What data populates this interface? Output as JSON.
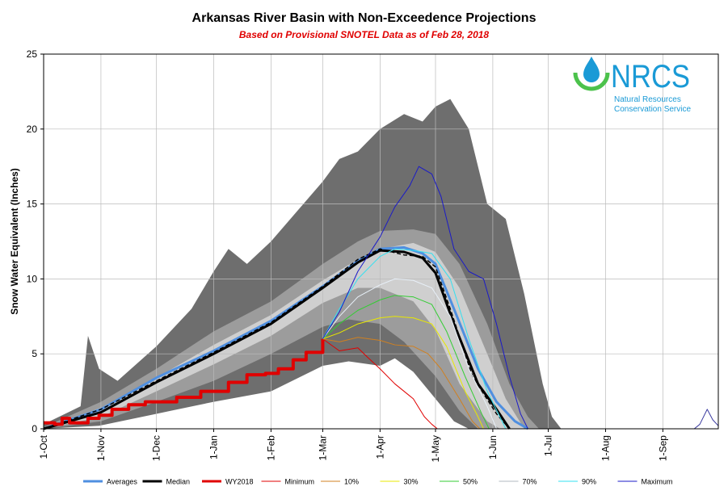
{
  "title": "Arkansas River Basin with Non-Exceedence Projections",
  "subtitle": "Based on Provisional SNOTEL Data as of Feb 28, 2018",
  "logo": {
    "name": "NRCS",
    "line1": "Natural Resources",
    "line2": "Conservation Service",
    "color": "#1a9ad6",
    "accent": "#4cc24c"
  },
  "chart_data": {
    "type": "area",
    "ylabel": "Snow Water Equivalent (Inches)",
    "xlabel": "",
    "ylim": [
      0,
      25
    ],
    "yticks": [
      0,
      5,
      10,
      15,
      20,
      25
    ],
    "xlim": [
      0,
      365
    ],
    "xticks": [
      {
        "day": 0,
        "label": "1-Oct"
      },
      {
        "day": 31,
        "label": "1-Nov"
      },
      {
        "day": 61,
        "label": "1-Dec"
      },
      {
        "day": 92,
        "label": "1-Jan"
      },
      {
        "day": 123,
        "label": "1-Feb"
      },
      {
        "day": 151,
        "label": "1-Mar"
      },
      {
        "day": 182,
        "label": "1-Apr"
      },
      {
        "day": 212,
        "label": "1-May"
      },
      {
        "day": 243,
        "label": "1-Jun"
      },
      {
        "day": 273,
        "label": "1-Jul"
      },
      {
        "day": 304,
        "label": "1-Aug"
      },
      {
        "day": 335,
        "label": "1-Sep"
      }
    ],
    "grid": true,
    "legend_position": "bottom",
    "bands": [
      {
        "fill": "#6e6e6e",
        "upper": [
          [
            0,
            0.3
          ],
          [
            20,
            1.5
          ],
          [
            24,
            6.2
          ],
          [
            30,
            4
          ],
          [
            40,
            3.2
          ],
          [
            61,
            5.5
          ],
          [
            80,
            8
          ],
          [
            92,
            10.5
          ],
          [
            100,
            12
          ],
          [
            110,
            11
          ],
          [
            123,
            12.5
          ],
          [
            137,
            14.5
          ],
          [
            151,
            16.5
          ],
          [
            160,
            18
          ],
          [
            170,
            18.5
          ],
          [
            182,
            20
          ],
          [
            195,
            21
          ],
          [
            205,
            20.5
          ],
          [
            212,
            21.5
          ],
          [
            220,
            22
          ],
          [
            230,
            20
          ],
          [
            240,
            15
          ],
          [
            250,
            14
          ],
          [
            260,
            9
          ],
          [
            270,
            3
          ],
          [
            275,
            0.8
          ],
          [
            280,
            0
          ]
        ],
        "lower": [
          [
            0,
            0
          ],
          [
            30,
            0.2
          ],
          [
            61,
            1
          ],
          [
            92,
            1.8
          ],
          [
            123,
            2.5
          ],
          [
            151,
            4.2
          ],
          [
            165,
            4.5
          ],
          [
            182,
            4.2
          ],
          [
            190,
            4.7
          ],
          [
            200,
            3.8
          ],
          [
            212,
            2
          ],
          [
            222,
            0.5
          ],
          [
            230,
            0
          ]
        ]
      },
      {
        "fill": "#9c9c9c",
        "upper": [
          [
            0,
            0.1
          ],
          [
            31,
            1.8
          ],
          [
            61,
            4
          ],
          [
            92,
            6.5
          ],
          [
            123,
            8.5
          ],
          [
            151,
            11
          ],
          [
            170,
            12.5
          ],
          [
            182,
            13.2
          ],
          [
            200,
            13.3
          ],
          [
            212,
            13
          ],
          [
            225,
            11
          ],
          [
            240,
            7
          ],
          [
            252,
            3
          ],
          [
            262,
            0.8
          ],
          [
            268,
            0
          ]
        ],
        "lower": [
          [
            0,
            0
          ],
          [
            31,
            0.5
          ],
          [
            61,
            1.8
          ],
          [
            92,
            3.2
          ],
          [
            123,
            5
          ],
          [
            151,
            6.8
          ],
          [
            165,
            7.3
          ],
          [
            182,
            7
          ],
          [
            195,
            5.8
          ],
          [
            212,
            3.5
          ],
          [
            225,
            1.2
          ],
          [
            235,
            0
          ]
        ]
      },
      {
        "fill": "#cfcfcf",
        "upper": [
          [
            0,
            0.05
          ],
          [
            31,
            1.4
          ],
          [
            61,
            3.4
          ],
          [
            92,
            5.6
          ],
          [
            123,
            7.6
          ],
          [
            151,
            9.9
          ],
          [
            170,
            11.3
          ],
          [
            182,
            12
          ],
          [
            200,
            12.4
          ],
          [
            212,
            11.8
          ],
          [
            225,
            9.4
          ],
          [
            240,
            5
          ],
          [
            250,
            2
          ],
          [
            260,
            0
          ]
        ],
        "lower": [
          [
            0,
            0
          ],
          [
            31,
            0.8
          ],
          [
            61,
            2.5
          ],
          [
            92,
            4.3
          ],
          [
            123,
            6.2
          ],
          [
            151,
            8.4
          ],
          [
            170,
            9.4
          ],
          [
            182,
            9.4
          ],
          [
            200,
            8.5
          ],
          [
            212,
            6.6
          ],
          [
            225,
            3
          ],
          [
            240,
            0.5
          ],
          [
            247,
            0
          ]
        ]
      }
    ],
    "series": [
      {
        "name": "Averages",
        "color": "#4f8fe0",
        "width": 3,
        "dash": "",
        "points": [
          [
            0,
            0
          ],
          [
            31,
            1.3
          ],
          [
            61,
            3.4
          ],
          [
            92,
            5.2
          ],
          [
            123,
            7.2
          ],
          [
            151,
            9.5
          ],
          [
            170,
            11.2
          ],
          [
            182,
            12
          ],
          [
            195,
            12.1
          ],
          [
            205,
            11.7
          ],
          [
            212,
            11
          ],
          [
            222,
            8
          ],
          [
            235,
            4
          ],
          [
            245,
            1.8
          ],
          [
            255,
            0.5
          ],
          [
            262,
            0
          ]
        ]
      },
      {
        "name": "Median",
        "color": "#000000",
        "width": 3,
        "dash": "",
        "points": [
          [
            0,
            0
          ],
          [
            31,
            1.1
          ],
          [
            61,
            3.1
          ],
          [
            92,
            5
          ],
          [
            123,
            7
          ],
          [
            151,
            9.4
          ],
          [
            170,
            11.1
          ],
          [
            182,
            11.9
          ],
          [
            195,
            11.8
          ],
          [
            205,
            11.4
          ],
          [
            212,
            10.4
          ],
          [
            222,
            7
          ],
          [
            235,
            3
          ],
          [
            245,
            1.3
          ],
          [
            252,
            0
          ]
        ]
      },
      {
        "name": "Median (dashed)",
        "color": "#000000",
        "width": 1.5,
        "dash": "5,3",
        "points": [
          [
            0,
            0
          ],
          [
            31,
            1.3
          ],
          [
            61,
            3.2
          ],
          [
            92,
            5.1
          ],
          [
            123,
            7.1
          ],
          [
            151,
            9.5
          ],
          [
            170,
            11.3
          ],
          [
            182,
            12
          ],
          [
            195,
            11.6
          ],
          [
            205,
            11.5
          ],
          [
            212,
            10.8
          ],
          [
            220,
            8
          ],
          [
            232,
            3.5
          ],
          [
            245,
            1
          ],
          [
            252,
            0
          ]
        ]
      },
      {
        "name": "WY2018",
        "color": "#e00000",
        "width": 4,
        "step": true,
        "dash": "",
        "points": [
          [
            0,
            0.4
          ],
          [
            6,
            0.3
          ],
          [
            10,
            0.7
          ],
          [
            14,
            0.4
          ],
          [
            24,
            0.7
          ],
          [
            30,
            0.9
          ],
          [
            37,
            1.3
          ],
          [
            46,
            1.6
          ],
          [
            55,
            1.8
          ],
          [
            61,
            1.8
          ],
          [
            72,
            2.1
          ],
          [
            85,
            2.5
          ],
          [
            100,
            3.1
          ],
          [
            110,
            3.6
          ],
          [
            120,
            3.7
          ],
          [
            127,
            4
          ],
          [
            135,
            4.6
          ],
          [
            142,
            5.1
          ],
          [
            151,
            6
          ]
        ]
      },
      {
        "name": "Minimum",
        "color": "#e00000",
        "width": 1,
        "dash": "",
        "points": [
          [
            151,
            6
          ],
          [
            160,
            5.2
          ],
          [
            170,
            5.4
          ],
          [
            175,
            4.8
          ],
          [
            182,
            4
          ],
          [
            190,
            3
          ],
          [
            200,
            2
          ],
          [
            206,
            0.8
          ],
          [
            210,
            0.3
          ],
          [
            213,
            0
          ]
        ]
      },
      {
        "name": "10%",
        "color": "#d08020",
        "width": 1,
        "dash": "",
        "points": [
          [
            151,
            6
          ],
          [
            160,
            5.8
          ],
          [
            170,
            6.1
          ],
          [
            182,
            5.9
          ],
          [
            190,
            5.6
          ],
          [
            200,
            5.5
          ],
          [
            208,
            5
          ],
          [
            215,
            4
          ],
          [
            225,
            2
          ],
          [
            232,
            0.5
          ],
          [
            236,
            0
          ]
        ]
      },
      {
        "name": "30%",
        "color": "#e8e800",
        "width": 1,
        "dash": "",
        "points": [
          [
            151,
            6
          ],
          [
            160,
            6.4
          ],
          [
            170,
            7
          ],
          [
            182,
            7.4
          ],
          [
            190,
            7.5
          ],
          [
            200,
            7.4
          ],
          [
            210,
            7
          ],
          [
            218,
            5.5
          ],
          [
            228,
            2.5
          ],
          [
            235,
            0.8
          ],
          [
            238,
            0
          ]
        ]
      },
      {
        "name": "50%",
        "color": "#33cc33",
        "width": 1,
        "dash": "",
        "points": [
          [
            151,
            6
          ],
          [
            160,
            7
          ],
          [
            170,
            7.9
          ],
          [
            182,
            8.6
          ],
          [
            190,
            8.9
          ],
          [
            200,
            8.8
          ],
          [
            210,
            8.3
          ],
          [
            218,
            6.5
          ],
          [
            228,
            3.5
          ],
          [
            237,
            1
          ],
          [
            241,
            0
          ]
        ]
      },
      {
        "name": "70%",
        "color": "#e8f0f8",
        "width": 1,
        "dash": "",
        "points": [
          [
            151,
            6
          ],
          [
            160,
            7.5
          ],
          [
            170,
            8.8
          ],
          [
            182,
            9.6
          ],
          [
            190,
            10
          ],
          [
            200,
            9.9
          ],
          [
            210,
            9.4
          ],
          [
            220,
            7.5
          ],
          [
            230,
            4
          ],
          [
            240,
            1.5
          ],
          [
            245,
            0
          ]
        ]
      },
      {
        "name": "90%",
        "color": "#33e0f0",
        "width": 1,
        "dash": "",
        "points": [
          [
            151,
            6
          ],
          [
            160,
            8
          ],
          [
            170,
            10
          ],
          [
            182,
            11.5
          ],
          [
            190,
            12
          ],
          [
            200,
            11.9
          ],
          [
            210,
            11.7
          ],
          [
            220,
            10
          ],
          [
            230,
            6
          ],
          [
            240,
            2.5
          ],
          [
            250,
            0
          ]
        ]
      },
      {
        "name": "Maximum",
        "color": "#1a1ac8",
        "width": 1,
        "dash": "",
        "points": [
          [
            151,
            6
          ],
          [
            160,
            7.8
          ],
          [
            170,
            10.5
          ],
          [
            182,
            12.8
          ],
          [
            190,
            14.8
          ],
          [
            198,
            16.2
          ],
          [
            203,
            17.5
          ],
          [
            210,
            17
          ],
          [
            215,
            15.5
          ],
          [
            222,
            12
          ],
          [
            230,
            10.5
          ],
          [
            238,
            10
          ],
          [
            245,
            7
          ],
          [
            252,
            3.5
          ],
          [
            258,
            1
          ],
          [
            262,
            0
          ]
        ]
      },
      {
        "name": "Maximum (late)",
        "color": "#3a3aa0",
        "width": 1,
        "dash": "",
        "points": [
          [
            352,
            0
          ],
          [
            355,
            0.3
          ],
          [
            359,
            1.3
          ],
          [
            362,
            0.6
          ],
          [
            365,
            0.2
          ]
        ]
      }
    ],
    "legend": [
      {
        "label": "Averages",
        "color": "#4f8fe0",
        "width": 3
      },
      {
        "label": "Median",
        "color": "#000000",
        "width": 3
      },
      {
        "label": "WY2018",
        "color": "#e00000",
        "width": 3
      },
      {
        "label": "Minimum",
        "color": "#e00000",
        "width": 1
      },
      {
        "label": "10%",
        "color": "#d08020",
        "width": 1
      },
      {
        "label": "30%",
        "color": "#e8e800",
        "width": 1
      },
      {
        "label": "50%",
        "color": "#33cc33",
        "width": 1
      },
      {
        "label": "70%",
        "color": "#b0b8c0",
        "width": 1
      },
      {
        "label": "90%",
        "color": "#33e0f0",
        "width": 1
      },
      {
        "label": "Maximum",
        "color": "#1a1ac8",
        "width": 1
      }
    ]
  }
}
